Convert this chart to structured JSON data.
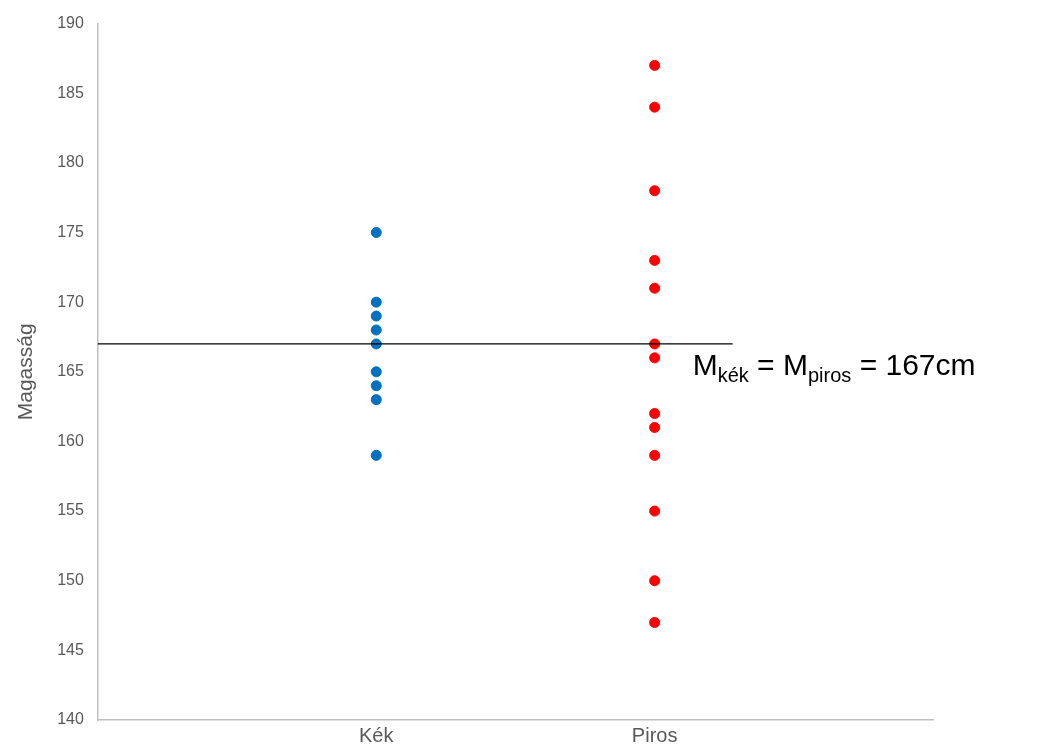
{
  "chart_data": {
    "type": "scatter",
    "ylabel": "Magasság",
    "categories": [
      "Kék",
      "Piros"
    ],
    "series": [
      {
        "color": "#0070c0",
        "x": [
          "Kék",
          "Kék",
          "Kék",
          "Kék",
          "Kék",
          "Kék",
          "Kék",
          "Kék",
          "Kék"
        ],
        "values": [
          175,
          170,
          169,
          168,
          167,
          165,
          164,
          163,
          159
        ]
      },
      {
        "color": "#ff0000",
        "x": [
          "Piros",
          "Piros",
          "Piros",
          "Piros",
          "Piros",
          "Piros",
          "Piros",
          "Piros",
          "Piros",
          "Piros",
          "Piros",
          "Piros",
          "Piros"
        ],
        "values": [
          187,
          184,
          178,
          173,
          171,
          167,
          166,
          162,
          161,
          159,
          155,
          150,
          147
        ]
      }
    ],
    "ylim": [
      140,
      190
    ],
    "yticks": [
      140,
      145,
      150,
      155,
      160,
      165,
      170,
      175,
      180,
      185,
      190
    ],
    "ref_lines": [
      {
        "axis": "y",
        "value": 167,
        "label": "M$_{kék}$ = M$_{piros}$ = 167cm",
        "color": "#000000"
      }
    ],
    "grid": false,
    "legend": false,
    "marker": "circle"
  }
}
